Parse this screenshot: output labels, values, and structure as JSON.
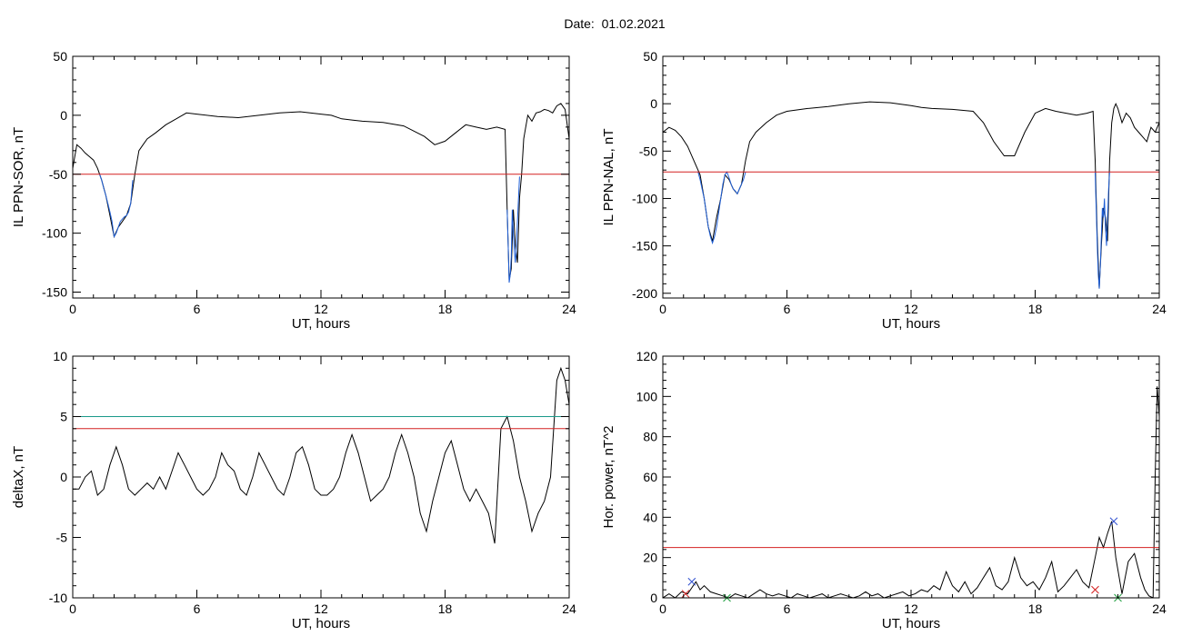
{
  "page": {
    "title": "Date:  01.02.2021"
  },
  "colors": {
    "trace": "#000000",
    "highlight": "#1f5fd6",
    "threshold": "#d42020",
    "threshold2": "#1a9a8a",
    "marker_blue": "#3050d0",
    "marker_red": "#d42020",
    "marker_green": "#20a040"
  },
  "chart_data": [
    {
      "id": "il-sor",
      "type": "line",
      "xlabel": "UT, hours",
      "ylabel": "IL PPN-SOR, nT",
      "xlim": [
        0,
        24
      ],
      "ylim": [
        -155,
        50
      ],
      "xticks": [
        0,
        6,
        12,
        18,
        24
      ],
      "xtick_labels": [
        "0",
        "6",
        "12",
        "18",
        "24"
      ],
      "yticks": [
        -150,
        -100,
        -50,
        0,
        50
      ],
      "ytick_labels": [
        "-150",
        "-100",
        "-50",
        "0",
        "50"
      ],
      "series": [
        {
          "role": "trace",
          "x": [
            0,
            0.2,
            0.4,
            0.6,
            0.8,
            1.0,
            1.2,
            1.4,
            1.6,
            1.8,
            2.0,
            2.2,
            2.4,
            2.6,
            2.8,
            3.0,
            3.2,
            3.4,
            3.6,
            4.0,
            4.5,
            5.0,
            5.5,
            6.0,
            7.0,
            8.0,
            9.0,
            10.0,
            11.0,
            12.0,
            12.5,
            13.0,
            13.5,
            14.0,
            15.0,
            16.0,
            17.0,
            17.5,
            18.0,
            18.5,
            19.0,
            19.5,
            20.0,
            20.5,
            20.9,
            21.0,
            21.1,
            21.2,
            21.3,
            21.4,
            21.5,
            21.6,
            21.7,
            21.8,
            21.9,
            22.0,
            22.2,
            22.4,
            22.6,
            22.8,
            23.0,
            23.2,
            23.4,
            23.6,
            23.8,
            24.0
          ],
          "y": [
            -45,
            -25,
            -28,
            -32,
            -35,
            -38,
            -45,
            -55,
            -68,
            -85,
            -103,
            -95,
            -90,
            -85,
            -75,
            -50,
            -30,
            -25,
            -20,
            -15,
            -8,
            -3,
            2,
            1,
            -1,
            -2,
            0,
            2,
            3,
            1,
            0,
            -3,
            -4,
            -5,
            -6,
            -9,
            -18,
            -25,
            -22,
            -15,
            -8,
            -10,
            -12,
            -10,
            -12,
            -80,
            -140,
            -130,
            -80,
            -110,
            -125,
            -70,
            -50,
            -20,
            -10,
            0,
            -5,
            2,
            3,
            5,
            4,
            2,
            8,
            10,
            5,
            -20
          ]
        },
        {
          "role": "highlight",
          "x": [
            1.3,
            1.4,
            1.5,
            1.6,
            1.7,
            1.8,
            1.9,
            2.0,
            2.1,
            2.2,
            2.3,
            2.4,
            2.5,
            2.6,
            2.7,
            2.8,
            2.9
          ],
          "y": [
            -50,
            -55,
            -62,
            -68,
            -75,
            -82,
            -90,
            -103,
            -100,
            -95,
            -90,
            -88,
            -86,
            -85,
            -82,
            -75,
            -55
          ]
        },
        {
          "role": "highlight",
          "x": [
            21.0,
            21.05,
            21.1,
            21.15,
            21.2,
            21.25,
            21.3,
            21.35,
            21.4,
            21.45,
            21.5,
            21.55,
            21.6
          ],
          "y": [
            -80,
            -110,
            -142,
            -135,
            -120,
            -80,
            -100,
            -115,
            -125,
            -110,
            -90,
            -70,
            -52
          ]
        },
        {
          "role": "threshold",
          "x": [
            0,
            24
          ],
          "y": [
            -50,
            -50
          ]
        }
      ]
    },
    {
      "id": "il-nal",
      "type": "line",
      "xlabel": "UT, hours",
      "ylabel": "IL PPN-NAL, nT",
      "xlim": [
        0,
        24
      ],
      "ylim": [
        -205,
        50
      ],
      "xticks": [
        0,
        6,
        12,
        18,
        24
      ],
      "xtick_labels": [
        "0",
        "6",
        "12",
        "18",
        "24"
      ],
      "yticks": [
        -200,
        -150,
        -100,
        -50,
        0,
        50
      ],
      "ytick_labels": [
        "-200",
        "-150",
        "-100",
        "-50",
        "0",
        "50"
      ],
      "series": [
        {
          "role": "trace",
          "x": [
            0,
            0.3,
            0.6,
            0.9,
            1.2,
            1.5,
            1.8,
            2.0,
            2.2,
            2.4,
            2.6,
            2.8,
            3.0,
            3.2,
            3.4,
            3.6,
            3.8,
            4.0,
            4.2,
            4.5,
            5.0,
            5.5,
            6.0,
            7.0,
            8.0,
            9.0,
            10.0,
            11.0,
            12.0,
            12.5,
            13.0,
            14.0,
            15.0,
            15.5,
            16.0,
            16.5,
            17.0,
            17.5,
            18.0,
            18.5,
            19.0,
            19.5,
            20.0,
            20.5,
            20.8,
            20.9,
            21.0,
            21.1,
            21.2,
            21.3,
            21.4,
            21.5,
            21.6,
            21.7,
            21.8,
            21.9,
            22.0,
            22.2,
            22.4,
            22.6,
            22.8,
            23.0,
            23.2,
            23.4,
            23.6,
            23.8,
            24.0
          ],
          "y": [
            -30,
            -25,
            -28,
            -35,
            -45,
            -60,
            -75,
            -100,
            -130,
            -145,
            -120,
            -100,
            -75,
            -80,
            -90,
            -95,
            -85,
            -60,
            -40,
            -30,
            -20,
            -12,
            -8,
            -5,
            -3,
            0,
            2,
            1,
            -2,
            -4,
            -5,
            -6,
            -8,
            -20,
            -40,
            -55,
            -55,
            -30,
            -10,
            -5,
            -8,
            -10,
            -12,
            -10,
            -8,
            -60,
            -140,
            -195,
            -150,
            -110,
            -120,
            -145,
            -60,
            -20,
            -5,
            0,
            -5,
            -20,
            -10,
            -15,
            -25,
            -30,
            -35,
            -40,
            -25,
            -30,
            -20
          ]
        },
        {
          "role": "highlight",
          "x": [
            1.7,
            1.8,
            1.9,
            2.0,
            2.1,
            2.2,
            2.3,
            2.4,
            2.5,
            2.6,
            2.7,
            2.8,
            2.9,
            3.0,
            3.1,
            3.2,
            3.3,
            3.4,
            3.5,
            3.6,
            3.7,
            3.8,
            3.9,
            4.0
          ],
          "y": [
            -72,
            -80,
            -90,
            -100,
            -115,
            -130,
            -140,
            -147,
            -140,
            -130,
            -115,
            -100,
            -85,
            -75,
            -72,
            -78,
            -85,
            -90,
            -92,
            -95,
            -90,
            -85,
            -80,
            -72
          ]
        },
        {
          "role": "highlight",
          "x": [
            20.9,
            20.95,
            21.0,
            21.05,
            21.1,
            21.15,
            21.2,
            21.25,
            21.3,
            21.35,
            21.4,
            21.45,
            21.5,
            21.55,
            21.6
          ],
          "y": [
            -72,
            -110,
            -150,
            -180,
            -195,
            -170,
            -140,
            -110,
            -120,
            -100,
            -130,
            -150,
            -120,
            -90,
            -72
          ]
        },
        {
          "role": "threshold",
          "x": [
            0,
            24
          ],
          "y": [
            -72,
            -72
          ]
        }
      ]
    },
    {
      "id": "deltax",
      "type": "line",
      "xlabel": "UT, hours",
      "ylabel": "deltaX, nT",
      "xlim": [
        0,
        24
      ],
      "ylim": [
        -10,
        10
      ],
      "xticks": [
        0,
        6,
        12,
        18,
        24
      ],
      "xtick_labels": [
        "0",
        "6",
        "12",
        "18",
        "24"
      ],
      "yticks": [
        -10,
        -5,
        0,
        5,
        10
      ],
      "ytick_labels": [
        "-10",
        "-5",
        "0",
        "5",
        "10"
      ],
      "series": [
        {
          "role": "trace",
          "x": [
            0,
            0.3,
            0.6,
            0.9,
            1.2,
            1.5,
            1.8,
            2.1,
            2.4,
            2.7,
            3.0,
            3.3,
            3.6,
            3.9,
            4.2,
            4.5,
            4.8,
            5.1,
            5.4,
            5.7,
            6.0,
            6.3,
            6.6,
            6.9,
            7.2,
            7.5,
            7.8,
            8.1,
            8.4,
            8.7,
            9.0,
            9.3,
            9.6,
            9.9,
            10.2,
            10.5,
            10.8,
            11.1,
            11.4,
            11.7,
            12.0,
            12.3,
            12.6,
            12.9,
            13.2,
            13.5,
            13.8,
            14.1,
            14.4,
            14.7,
            15.0,
            15.3,
            15.6,
            15.9,
            16.2,
            16.5,
            16.8,
            17.1,
            17.4,
            17.7,
            18.0,
            18.3,
            18.6,
            18.9,
            19.2,
            19.5,
            19.8,
            20.1,
            20.4,
            20.7,
            21.0,
            21.3,
            21.6,
            21.9,
            22.2,
            22.5,
            22.8,
            23.1,
            23.4,
            23.6,
            23.8,
            24.0
          ],
          "y": [
            -1,
            -1,
            0,
            0.5,
            -1.5,
            -1,
            1,
            2.5,
            1,
            -1,
            -1.5,
            -1,
            -0.5,
            -1,
            0,
            -1,
            0.5,
            2,
            1,
            0,
            -1,
            -1.5,
            -1,
            0,
            2,
            1,
            0.5,
            -1,
            -1.5,
            0,
            2,
            1,
            0,
            -1,
            -1.5,
            0,
            2,
            2.5,
            1,
            -1,
            -1.5,
            -1.5,
            -1,
            0,
            2,
            3.5,
            2,
            0,
            -2,
            -1.5,
            -1,
            0,
            2,
            3.5,
            2,
            0,
            -3,
            -4.5,
            -2,
            0,
            2,
            3,
            1,
            -1,
            -2,
            -1,
            -2,
            -3,
            -5.5,
            4,
            5,
            3,
            0,
            -2,
            -4.5,
            -3,
            -2,
            0,
            8,
            9,
            8,
            6
          ]
        },
        {
          "role": "threshold",
          "x": [
            0,
            24
          ],
          "y": [
            4,
            4
          ]
        },
        {
          "role": "threshold2",
          "x": [
            0,
            24
          ],
          "y": [
            5,
            5
          ]
        }
      ]
    },
    {
      "id": "hor-power",
      "type": "line",
      "xlabel": "UT, hours",
      "ylabel": "Hor. power, nT^2",
      "xlim": [
        0,
        24
      ],
      "ylim": [
        0,
        120
      ],
      "xticks": [
        0,
        6,
        12,
        18,
        24
      ],
      "xtick_labels": [
        "0",
        "6",
        "12",
        "18",
        "24"
      ],
      "yticks": [
        0,
        20,
        40,
        60,
        80,
        100,
        120
      ],
      "ytick_labels": [
        "0",
        "20",
        "40",
        "60",
        "80",
        "100",
        "120"
      ],
      "series": [
        {
          "role": "trace",
          "x": [
            0,
            0.3,
            0.6,
            0.9,
            1.2,
            1.4,
            1.6,
            1.8,
            2.0,
            2.3,
            2.6,
            2.9,
            3.2,
            3.5,
            3.8,
            4.1,
            4.4,
            4.7,
            5.0,
            5.3,
            5.6,
            5.9,
            6.2,
            6.5,
            6.8,
            7.1,
            7.4,
            7.7,
            8.0,
            8.3,
            8.6,
            8.9,
            9.2,
            9.5,
            9.8,
            10.1,
            10.4,
            10.7,
            11.0,
            11.3,
            11.6,
            11.9,
            12.2,
            12.5,
            12.8,
            13.1,
            13.4,
            13.7,
            14.0,
            14.3,
            14.6,
            14.9,
            15.2,
            15.5,
            15.8,
            16.1,
            16.4,
            16.7,
            17.0,
            17.3,
            17.6,
            17.9,
            18.2,
            18.5,
            18.8,
            19.1,
            19.4,
            19.7,
            20.0,
            20.3,
            20.6,
            20.9,
            21.1,
            21.3,
            21.5,
            21.7,
            21.9,
            22.2,
            22.5,
            22.8,
            23.1,
            23.3,
            23.5,
            23.7,
            23.8,
            23.9,
            24.0
          ],
          "y": [
            0,
            2,
            0,
            3,
            2,
            5,
            8,
            4,
            6,
            3,
            2,
            1,
            0,
            2,
            1,
            0,
            2,
            4,
            2,
            1,
            2,
            1,
            0,
            2,
            1,
            0,
            1,
            2,
            0,
            1,
            2,
            1,
            0,
            1,
            3,
            1,
            2,
            0,
            1,
            2,
            3,
            1,
            2,
            4,
            3,
            6,
            4,
            13,
            6,
            3,
            8,
            2,
            5,
            10,
            15,
            6,
            4,
            8,
            20,
            10,
            6,
            8,
            4,
            10,
            18,
            3,
            6,
            10,
            14,
            8,
            5,
            20,
            30,
            25,
            32,
            38,
            20,
            2,
            18,
            22,
            10,
            4,
            1,
            0,
            60,
            105,
            90
          ]
        },
        {
          "role": "threshold",
          "x": [
            0,
            24
          ],
          "y": [
            25,
            25
          ]
        }
      ],
      "markers": [
        {
          "role": "marker_blue",
          "x": [
            1.4,
            21.8
          ],
          "y": [
            8,
            38
          ]
        },
        {
          "role": "marker_red",
          "x": [
            1.1,
            20.9
          ],
          "y": [
            2,
            4
          ]
        },
        {
          "role": "marker_green",
          "x": [
            3.1,
            22.0
          ],
          "y": [
            0,
            0
          ]
        }
      ]
    }
  ]
}
